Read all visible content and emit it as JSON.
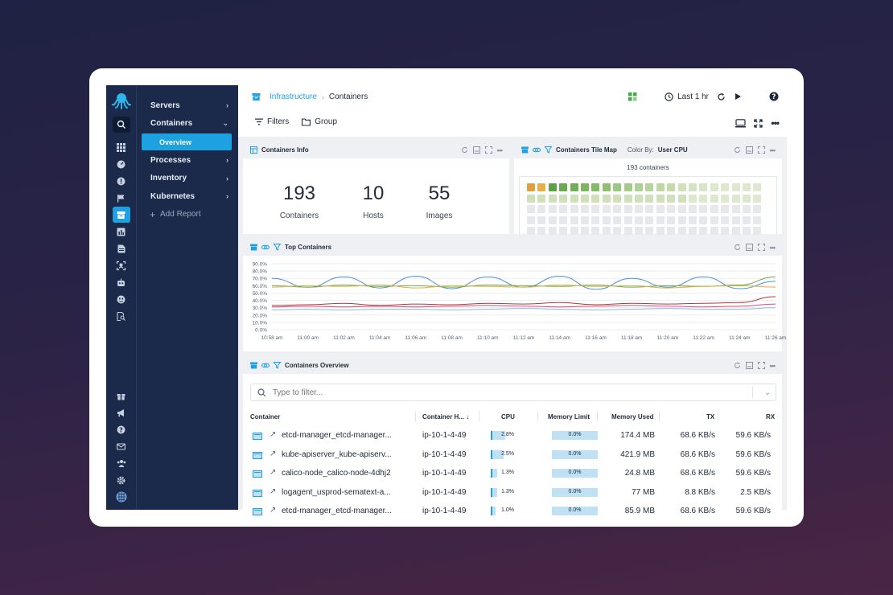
{
  "nav": {
    "items": [
      {
        "label": "Servers"
      },
      {
        "label": "Containers"
      },
      {
        "label": "Processes"
      },
      {
        "label": "Inventory"
      },
      {
        "label": "Kubernetes"
      }
    ],
    "sub_item": "Overview",
    "add_report": "Add Report"
  },
  "breadcrumb": {
    "parent": "Infrastructure",
    "current": "Containers"
  },
  "toolbar": {
    "time_range": "Last 1 hr",
    "filters": "Filters",
    "group": "Group"
  },
  "containers_info": {
    "title": "Containers Info",
    "stats": [
      {
        "value": "193",
        "label": "Containers"
      },
      {
        "value": "10",
        "label": "Hosts"
      },
      {
        "value": "55",
        "label": "Images"
      }
    ]
  },
  "tile_map": {
    "title": "Containers Tile Map",
    "color_by_label": "Color By:",
    "color_by_value": "User CPU",
    "count_label": "193 containers"
  },
  "top_containers": {
    "title": "Top Containers"
  },
  "chart_data": {
    "type": "line",
    "title": "Top Containers",
    "x": [
      "10:58 am",
      "11:00 am",
      "11:02 am",
      "11:04 am",
      "11:06 am",
      "11:08 am",
      "11:10 am",
      "11:12 am",
      "11:14 am",
      "11:16 am",
      "11:18 am",
      "11:20 am",
      "11:22 am",
      "11:24 am",
      "11:26 am"
    ],
    "y_ticks": [
      "90.0%",
      "80.0%",
      "70.0%",
      "60.0%",
      "50.0%",
      "40.0%",
      "30.0%",
      "20.0%",
      "10.0%",
      "0.0%"
    ],
    "ylim": [
      0,
      90
    ],
    "series": [
      {
        "color": "#4a90d9",
        "values": [
          70,
          58,
          72,
          57,
          73,
          56,
          72,
          58,
          73,
          55,
          70,
          58,
          72,
          56,
          66
        ]
      },
      {
        "color": "#6fa84a",
        "values": [
          60,
          58,
          61,
          59,
          60,
          58,
          61,
          60,
          59,
          61,
          58,
          60,
          59,
          61,
          72
        ]
      },
      {
        "color": "#e0b23a",
        "values": [
          58,
          60,
          59,
          61,
          57,
          60,
          59,
          58,
          61,
          59,
          60,
          57,
          59,
          60,
          58
        ]
      },
      {
        "color": "#b33a3a",
        "values": [
          33,
          34,
          36,
          33,
          35,
          34,
          36,
          35,
          37,
          34,
          36,
          35,
          36,
          37,
          45
        ]
      },
      {
        "color": "#d44c7a",
        "values": [
          31,
          32,
          31,
          32,
          31,
          32,
          33,
          32,
          31,
          32,
          33,
          32,
          31,
          32,
          35
        ]
      },
      {
        "color": "#8db7e8",
        "values": [
          27,
          28,
          27,
          28,
          28,
          27,
          28,
          29,
          28,
          27,
          28,
          29,
          28,
          28,
          30
        ]
      }
    ]
  },
  "overview": {
    "title": "Containers Overview",
    "filter_placeholder": "Type to filter...",
    "columns": [
      "Container",
      "Container H...",
      "CPU",
      "Memory Limit",
      "Memory Used",
      "TX",
      "RX"
    ],
    "sort_indicator": "↓",
    "rows": [
      {
        "container": "etcd-manager_etcd-manager...",
        "host": "ip-10-1-4-49",
        "cpu": "2.8%",
        "cpu_frac": 0.028,
        "mem_limit": "0.0%",
        "mem_used": "174.4 MB",
        "tx": "68.6 KB/s",
        "rx": "59.6 KB/s"
      },
      {
        "container": "kube-apiserver_kube-apiserv...",
        "host": "ip-10-1-4-49",
        "cpu": "2.5%",
        "cpu_frac": 0.025,
        "mem_limit": "0.0%",
        "mem_used": "421.9 MB",
        "tx": "68.6 KB/s",
        "rx": "59.6 KB/s"
      },
      {
        "container": "calico-node_calico-node-4dhj2",
        "host": "ip-10-1-4-49",
        "cpu": "1.3%",
        "cpu_frac": 0.013,
        "mem_limit": "0.0%",
        "mem_used": "24.8 MB",
        "tx": "68.6 KB/s",
        "rx": "59.6 KB/s"
      },
      {
        "container": "logagent_usprod-sematext-a...",
        "host": "ip-10-1-4-49",
        "cpu": "1.3%",
        "cpu_frac": 0.013,
        "mem_limit": "0.0%",
        "mem_used": "77 MB",
        "tx": "8.8 KB/s",
        "rx": "2.5 KB/s"
      },
      {
        "container": "etcd-manager_etcd-manager...",
        "host": "ip-10-1-4-49",
        "cpu": "1.0%",
        "cpu_frac": 0.01,
        "mem_limit": "0.0%",
        "mem_used": "85.9 MB",
        "tx": "68.6 KB/s",
        "rx": "59.6 KB/s"
      }
    ]
  },
  "colors": {
    "accent": "#1ea1e0",
    "sidebar": "#1b2a4a"
  }
}
